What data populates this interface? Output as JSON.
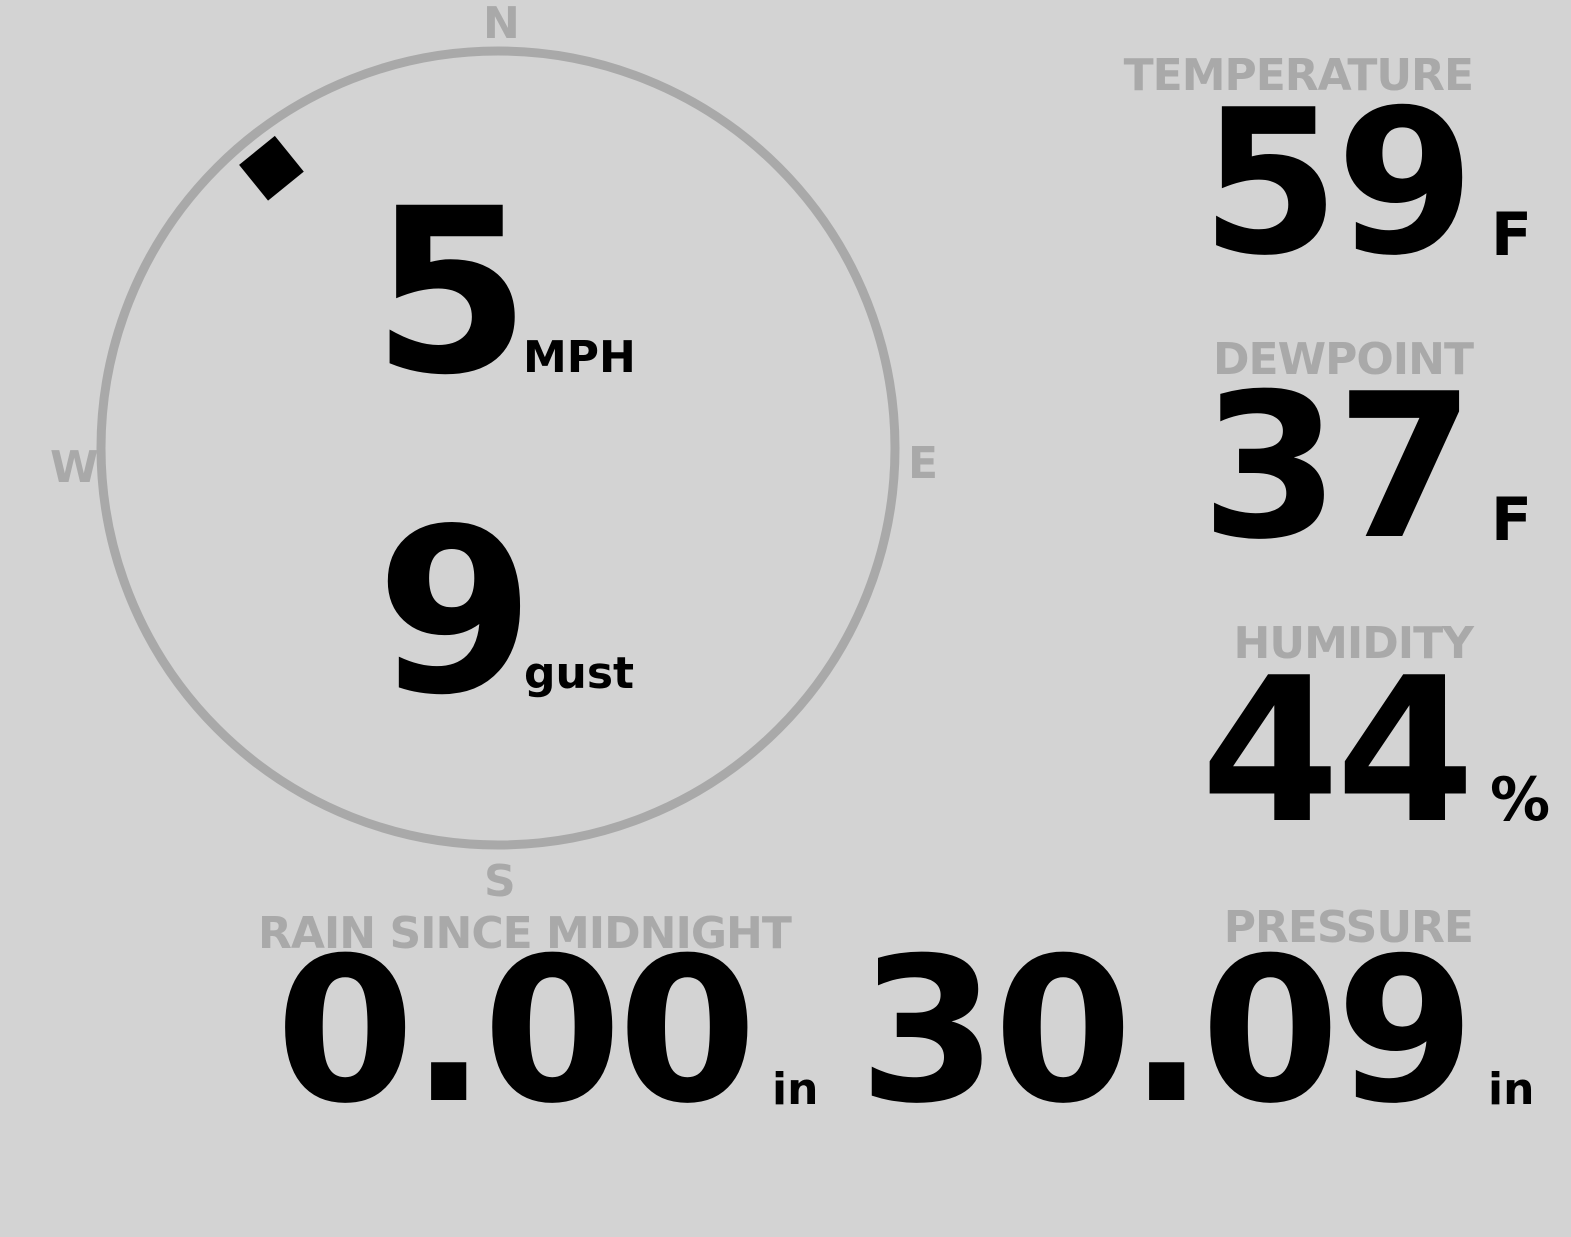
{
  "wind": {
    "compass": {
      "n": "N",
      "e": "E",
      "s": "S",
      "w": "W"
    },
    "direction_deg": 321,
    "speed": "5",
    "speed_unit": "MPH",
    "gust": "9",
    "gust_unit": "gust"
  },
  "temperature": {
    "label": "TEMPERATURE",
    "value": "59",
    "unit": "F"
  },
  "dewpoint": {
    "label": "DEWPOINT",
    "value": "37",
    "unit": "F"
  },
  "humidity": {
    "label": "HUMIDITY",
    "value": "44",
    "unit": "%"
  },
  "rain": {
    "label": "RAIN SINCE MIDNIGHT",
    "value": "0.00",
    "unit": "in"
  },
  "pressure": {
    "label": "PRESSURE",
    "value": "30.09",
    "unit": "in"
  },
  "colors": {
    "background": "#d3d3d3",
    "label": "#a9a9a9",
    "value": "#000000"
  }
}
